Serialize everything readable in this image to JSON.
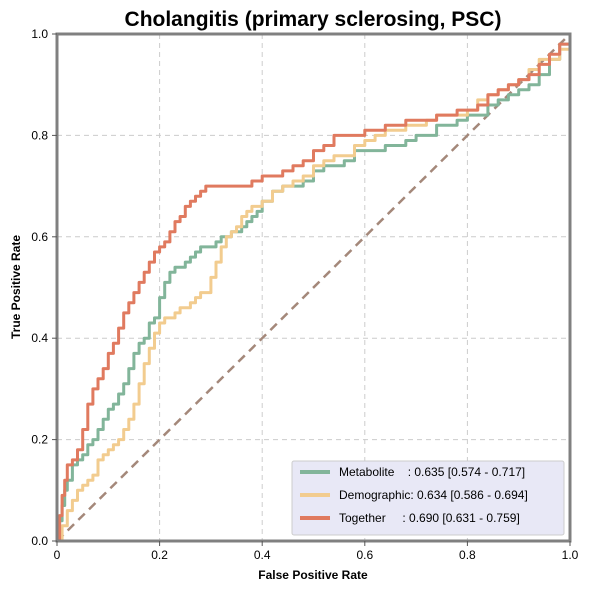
{
  "chart_data": {
    "type": "line",
    "title": "Cholangitis (primary sclerosing, PSC)",
    "xlabel": "False Positive Rate",
    "ylabel": "True Positive Rate",
    "xlim": [
      0,
      1
    ],
    "ylim": [
      0,
      1
    ],
    "xticks": [
      "0",
      "0.2",
      "0.4",
      "0.6",
      "0.8",
      "1.0"
    ],
    "yticks": [
      "0.0",
      "0.2",
      "0.4",
      "0.6",
      "0.8",
      "1.0"
    ],
    "grid": true,
    "legend_position": "bottom-right",
    "diagonal": {
      "x": [
        0,
        1
      ],
      "y": [
        0,
        1
      ],
      "color": "#a4887a",
      "style": "dashed"
    },
    "series": [
      {
        "name": "Metabolite",
        "auc_label": "    : 0.635 [0.574 - 0.717]",
        "color": "#82b59a",
        "x": [
          0,
          0.005,
          0.01,
          0.015,
          0.02,
          0.03,
          0.04,
          0.05,
          0.06,
          0.07,
          0.08,
          0.09,
          0.1,
          0.11,
          0.12,
          0.13,
          0.14,
          0.15,
          0.16,
          0.17,
          0.18,
          0.19,
          0.2,
          0.21,
          0.22,
          0.23,
          0.24,
          0.25,
          0.26,
          0.27,
          0.28,
          0.29,
          0.3,
          0.31,
          0.32,
          0.33,
          0.34,
          0.35,
          0.36,
          0.37,
          0.38,
          0.39,
          0.4,
          0.42,
          0.44,
          0.46,
          0.48,
          0.5,
          0.52,
          0.54,
          0.56,
          0.58,
          0.6,
          0.62,
          0.64,
          0.66,
          0.68,
          0.7,
          0.72,
          0.74,
          0.76,
          0.78,
          0.8,
          0.82,
          0.84,
          0.86,
          0.88,
          0.9,
          0.92,
          0.94,
          0.96,
          0.98,
          1.0
        ],
        "y": [
          0,
          0.04,
          0.07,
          0.1,
          0.12,
          0.15,
          0.16,
          0.17,
          0.19,
          0.2,
          0.22,
          0.24,
          0.26,
          0.27,
          0.29,
          0.31,
          0.34,
          0.37,
          0.39,
          0.4,
          0.43,
          0.44,
          0.48,
          0.51,
          0.53,
          0.54,
          0.54,
          0.55,
          0.56,
          0.57,
          0.58,
          0.58,
          0.58,
          0.59,
          0.6,
          0.6,
          0.61,
          0.61,
          0.62,
          0.63,
          0.64,
          0.65,
          0.67,
          0.69,
          0.7,
          0.7,
          0.71,
          0.73,
          0.74,
          0.74,
          0.75,
          0.77,
          0.77,
          0.77,
          0.78,
          0.78,
          0.79,
          0.8,
          0.8,
          0.82,
          0.82,
          0.83,
          0.84,
          0.84,
          0.86,
          0.87,
          0.88,
          0.89,
          0.9,
          0.92,
          0.95,
          0.98,
          1.0
        ]
      },
      {
        "name": "Demographic",
        "auc_label": ": 0.634 [0.586 - 0.694]",
        "color": "#f2cc8f",
        "x": [
          0,
          0.01,
          0.02,
          0.03,
          0.04,
          0.05,
          0.06,
          0.07,
          0.08,
          0.09,
          0.1,
          0.11,
          0.12,
          0.13,
          0.14,
          0.15,
          0.16,
          0.17,
          0.18,
          0.19,
          0.2,
          0.21,
          0.22,
          0.23,
          0.24,
          0.25,
          0.26,
          0.27,
          0.28,
          0.29,
          0.3,
          0.31,
          0.32,
          0.33,
          0.34,
          0.35,
          0.36,
          0.37,
          0.38,
          0.39,
          0.4,
          0.42,
          0.44,
          0.46,
          0.48,
          0.5,
          0.52,
          0.54,
          0.56,
          0.58,
          0.6,
          0.62,
          0.64,
          0.66,
          0.68,
          0.7,
          0.72,
          0.74,
          0.76,
          0.78,
          0.8,
          0.82,
          0.84,
          0.86,
          0.88,
          0.9,
          0.92,
          0.94,
          0.96,
          0.98,
          1.0
        ],
        "y": [
          0,
          0.03,
          0.06,
          0.08,
          0.1,
          0.11,
          0.12,
          0.13,
          0.16,
          0.17,
          0.18,
          0.19,
          0.2,
          0.22,
          0.24,
          0.27,
          0.31,
          0.35,
          0.38,
          0.41,
          0.43,
          0.44,
          0.44,
          0.45,
          0.46,
          0.46,
          0.47,
          0.48,
          0.49,
          0.49,
          0.52,
          0.55,
          0.58,
          0.6,
          0.61,
          0.62,
          0.64,
          0.65,
          0.66,
          0.66,
          0.67,
          0.69,
          0.7,
          0.71,
          0.72,
          0.74,
          0.75,
          0.76,
          0.76,
          0.78,
          0.79,
          0.8,
          0.81,
          0.81,
          0.82,
          0.82,
          0.83,
          0.84,
          0.84,
          0.84,
          0.85,
          0.87,
          0.88,
          0.89,
          0.9,
          0.91,
          0.93,
          0.95,
          0.95,
          0.97,
          1.0
        ]
      },
      {
        "name": "Together",
        "auc_label": "     : 0.690 [0.631 - 0.759]",
        "color": "#e07a5f",
        "x": [
          0,
          0.005,
          0.01,
          0.015,
          0.02,
          0.03,
          0.04,
          0.05,
          0.06,
          0.07,
          0.08,
          0.09,
          0.1,
          0.11,
          0.12,
          0.13,
          0.14,
          0.15,
          0.16,
          0.17,
          0.18,
          0.19,
          0.2,
          0.21,
          0.22,
          0.23,
          0.24,
          0.25,
          0.26,
          0.27,
          0.28,
          0.29,
          0.3,
          0.32,
          0.34,
          0.36,
          0.38,
          0.4,
          0.42,
          0.44,
          0.46,
          0.48,
          0.5,
          0.52,
          0.54,
          0.56,
          0.58,
          0.6,
          0.62,
          0.64,
          0.66,
          0.68,
          0.7,
          0.72,
          0.74,
          0.76,
          0.78,
          0.8,
          0.82,
          0.84,
          0.86,
          0.88,
          0.9,
          0.92,
          0.94,
          0.96,
          0.98,
          1.0
        ],
        "y": [
          0,
          0.05,
          0.09,
          0.12,
          0.15,
          0.16,
          0.18,
          0.22,
          0.27,
          0.3,
          0.32,
          0.34,
          0.37,
          0.39,
          0.42,
          0.45,
          0.47,
          0.49,
          0.51,
          0.53,
          0.55,
          0.57,
          0.58,
          0.59,
          0.61,
          0.63,
          0.64,
          0.66,
          0.67,
          0.68,
          0.69,
          0.7,
          0.7,
          0.7,
          0.7,
          0.7,
          0.71,
          0.72,
          0.72,
          0.73,
          0.74,
          0.75,
          0.77,
          0.78,
          0.8,
          0.8,
          0.8,
          0.81,
          0.81,
          0.82,
          0.82,
          0.83,
          0.83,
          0.83,
          0.84,
          0.84,
          0.85,
          0.85,
          0.86,
          0.88,
          0.89,
          0.9,
          0.91,
          0.92,
          0.94,
          0.96,
          0.98,
          1.0
        ]
      }
    ]
  }
}
